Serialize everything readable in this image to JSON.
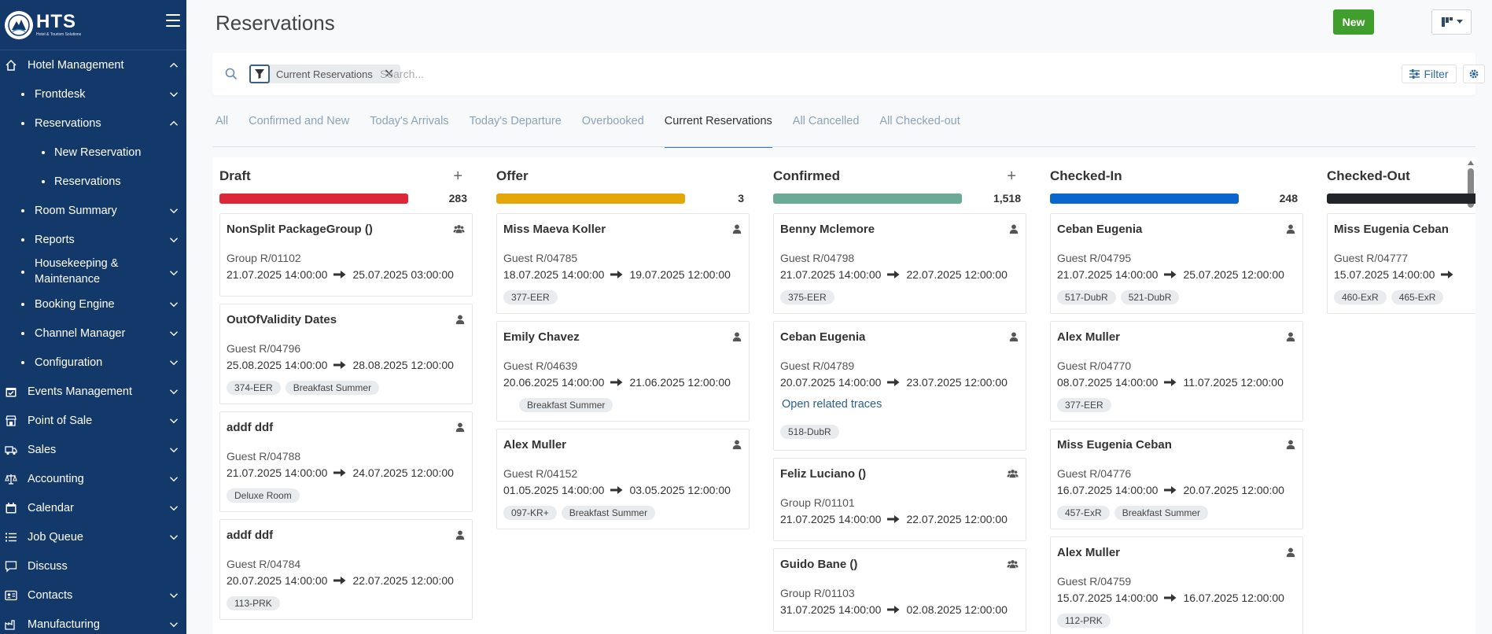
{
  "brand": {
    "name": "HTS",
    "tagline": "Hotel & Tourism Solutions"
  },
  "sidebar": {
    "items": [
      {
        "label": "Hotel Management",
        "level": 0,
        "icon": "house-icon",
        "chevron": "up"
      },
      {
        "label": "Frontdesk",
        "level": 1,
        "chevron": "down"
      },
      {
        "label": "Reservations",
        "level": 1,
        "chevron": "up"
      },
      {
        "label": "New Reservation",
        "level": 2,
        "chevron": ""
      },
      {
        "label": "Reservations",
        "level": 2,
        "chevron": ""
      },
      {
        "label": "Room Summary",
        "level": 1,
        "chevron": "down"
      },
      {
        "label": "Reports",
        "level": 1,
        "chevron": "down"
      },
      {
        "label": "Housekeeping & Maintenance",
        "level": 1,
        "chevron": "down",
        "tall": true
      },
      {
        "label": "Booking Engine",
        "level": 1,
        "chevron": "down"
      },
      {
        "label": "Channel Manager",
        "level": 1,
        "chevron": "down"
      },
      {
        "label": "Configuration",
        "level": 1,
        "chevron": "down"
      },
      {
        "label": "Events Management",
        "level": 0,
        "icon": "calendar-check-icon",
        "chevron": "down"
      },
      {
        "label": "Point of Sale",
        "level": 0,
        "icon": "store-icon",
        "chevron": "down"
      },
      {
        "label": "Sales",
        "level": 0,
        "icon": "truck-icon",
        "chevron": "down"
      },
      {
        "label": "Accounting",
        "level": 0,
        "icon": "scale-icon",
        "chevron": "down"
      },
      {
        "label": "Calendar",
        "level": 0,
        "icon": "calendar-icon",
        "chevron": "down"
      },
      {
        "label": "Job Queue",
        "level": 0,
        "icon": "list-icon",
        "chevron": "down"
      },
      {
        "label": "Discuss",
        "level": 0,
        "icon": "chat-icon",
        "chevron": ""
      },
      {
        "label": "Contacts",
        "level": 0,
        "icon": "contact-card-icon",
        "chevron": "down"
      },
      {
        "label": "Manufacturing",
        "level": 0,
        "icon": "factory-icon",
        "chevron": "down"
      }
    ]
  },
  "header": {
    "title": "Reservations",
    "new_label": "New"
  },
  "search": {
    "facet_label": "Current Reservations",
    "placeholder": "Search...",
    "filter_label": "Filter"
  },
  "tabs": [
    "All",
    "Confirmed and New",
    "Today's Arrivals",
    "Today's Departure",
    "Overbooked",
    "Current Reservations",
    "All Cancelled",
    "All Checked-out"
  ],
  "active_tab": "Current Reservations",
  "columns": [
    {
      "title": "Draft",
      "count": "283",
      "color": "#dc2738",
      "addable": true,
      "cards": [
        {
          "title": "NonSplit PackageGroup ()",
          "icon": "group-icon",
          "ref": "Group R/01102",
          "from": "21.07.2025 14:00:00",
          "to": "25.07.2025 03:00:00",
          "tags": []
        },
        {
          "title": "OutOfValidity Dates",
          "icon": "person-icon",
          "ref": "Guest R/04796",
          "from": "25.08.2025 14:00:00",
          "to": "28.08.2025 12:00:00",
          "tags": [
            "374-EER",
            "Breakfast Summer"
          ]
        },
        {
          "title": "addf ddf",
          "icon": "person-icon",
          "ref": "Guest R/04788",
          "from": "21.07.2025 14:00:00",
          "to": "24.07.2025 12:00:00",
          "tags": [
            "Deluxe Room"
          ]
        },
        {
          "title": "addf ddf",
          "icon": "person-icon",
          "ref": "Guest R/04784",
          "from": "20.07.2025 14:00:00",
          "to": "22.07.2025 12:00:00",
          "tags": [
            "113-PRK"
          ]
        }
      ]
    },
    {
      "title": "Offer",
      "count": "3",
      "color": "#e4a709",
      "addable": false,
      "cards": [
        {
          "title": "Miss Maeva Koller",
          "icon": "person-icon",
          "ref": "Guest R/04785",
          "from": "18.07.2025 14:00:00",
          "to": "19.07.2025 12:00:00",
          "tags": [
            "377-EER"
          ]
        },
        {
          "title": "Emily Chavez",
          "icon": "person-icon",
          "ref": "Guest R/04639",
          "from": "20.06.2025 14:00:00",
          "to": "21.06.2025 12:00:00",
          "tags": [
            "Breakfast Summer"
          ]
        },
        {
          "title": "Alex Muller",
          "icon": "person-icon",
          "ref": "Guest R/04152",
          "from": "01.05.2025 14:00:00",
          "to": "03.05.2025 12:00:00",
          "tags": [
            "097-KR+",
            "Breakfast Summer"
          ]
        }
      ]
    },
    {
      "title": "Confirmed",
      "count": "1,518",
      "color": "#6aaa96",
      "addable": true,
      "cards": [
        {
          "title": "Benny Mclemore",
          "icon": "person-icon",
          "ref": "Guest R/04798",
          "from": "21.07.2025 14:00:00",
          "to": "22.07.2025 12:00:00",
          "tags": [
            "375-EER"
          ]
        },
        {
          "title": "Ceban Eugenia",
          "icon": "person-icon",
          "ref": "Guest R/04789",
          "from": "20.07.2025 14:00:00",
          "to": "23.07.2025 12:00:00",
          "link": "Open related traces",
          "tags": [
            "518-DubR"
          ]
        },
        {
          "title": "Feliz Luciano ()",
          "icon": "group-icon",
          "ref": "Group R/01101",
          "from": "21.07.2025 14:00:00",
          "to": "22.07.2025 12:00:00",
          "tags": []
        },
        {
          "title": "Guido Bane ()",
          "icon": "group-icon",
          "ref": "Group R/01103",
          "from": "31.07.2025 14:00:00",
          "to": "02.08.2025 12:00:00",
          "tags": []
        }
      ]
    },
    {
      "title": "Checked-In",
      "count": "248",
      "color": "#0a66cc",
      "addable": false,
      "cards": [
        {
          "title": "Ceban Eugenia",
          "icon": "person-icon",
          "ref": "Guest R/04795",
          "from": "21.07.2025 14:00:00",
          "to": "25.07.2025 12:00:00",
          "tags": [
            "517-DubR",
            "521-DubR"
          ]
        },
        {
          "title": "Alex Muller",
          "icon": "person-icon",
          "ref": "Guest R/04770",
          "from": "08.07.2025 14:00:00",
          "to": "11.07.2025 12:00:00",
          "tags": [
            "377-EER"
          ]
        },
        {
          "title": "Miss Eugenia Ceban",
          "icon": "person-icon",
          "ref": "Guest R/04776",
          "from": "16.07.2025 14:00:00",
          "to": "20.07.2025 12:00:00",
          "tags": [
            "457-ExR",
            "Breakfast Summer"
          ]
        },
        {
          "title": "Alex Muller",
          "icon": "person-icon",
          "ref": "Guest R/04759",
          "from": "15.07.2025 14:00:00",
          "to": "16.07.2025 12:00:00",
          "tags": [
            "112-PRK"
          ]
        }
      ]
    },
    {
      "title": "Checked-Out",
      "count": "",
      "color": "#212529",
      "addable": false,
      "cards": [
        {
          "title": "Miss Eugenia Ceban",
          "icon": "person-icon",
          "ref": "Guest R/04777",
          "from": "15.07.2025 14:00:00",
          "to": "",
          "tags": [
            "460-ExR",
            "465-ExR"
          ]
        }
      ]
    }
  ]
}
